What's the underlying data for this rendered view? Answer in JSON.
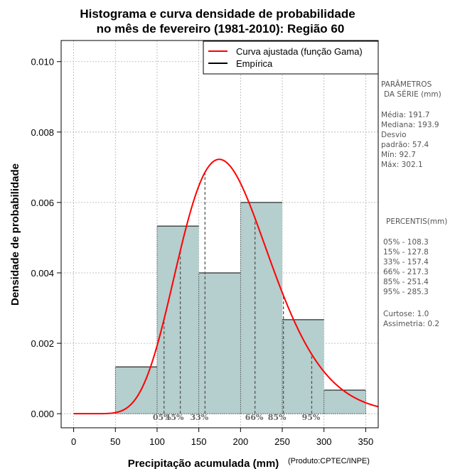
{
  "chart_data": {
    "type": "histogram",
    "title_line1": "Histograma e curva densidade de probabilidade",
    "title_line2": "no mês de fevereiro (1981-2010): Região 60",
    "xlabel": "Precipitação acumulada (mm)",
    "ylabel": "Densidade de probabilidade",
    "credit": "(Produto:CPTEC/INPE)",
    "xlim": [
      -15,
      365
    ],
    "ylim": [
      -0.0004,
      0.0106
    ],
    "x_ticks": [
      0,
      50,
      100,
      150,
      200,
      250,
      300,
      350
    ],
    "x_tick_labels": [
      "0",
      "50",
      "100",
      "150",
      "200",
      "250",
      "300",
      "350"
    ],
    "y_ticks": [
      0,
      0.002,
      0.004,
      0.006,
      0.008,
      0.01
    ],
    "y_tick_labels": [
      "0.000",
      "0.002",
      "0.004",
      "0.006",
      "0.008",
      "0.010"
    ],
    "grid": true,
    "bins": [
      {
        "start": 50,
        "end": 100,
        "density": 0.00133
      },
      {
        "start": 100,
        "end": 150,
        "density": 0.00533
      },
      {
        "start": 150,
        "end": 200,
        "density": 0.004
      },
      {
        "start": 200,
        "end": 250,
        "density": 0.006
      },
      {
        "start": 250,
        "end": 300,
        "density": 0.00267
      },
      {
        "start": 300,
        "end": 350,
        "density": 0.00067
      }
    ],
    "bar_color": "#b5cece",
    "curve_color": "#ff0000",
    "gamma_fit": {
      "mean": 191.7,
      "sd": 57.4
    },
    "legend": {
      "position": "top-right",
      "entries": [
        {
          "label": "Curva ajustada (função Gama)",
          "color": "#ff0000"
        },
        {
          "label": "Empírica",
          "color": "#000000"
        }
      ]
    },
    "percentiles": [
      {
        "label": "05%",
        "value": 108.3
      },
      {
        "label": "15%",
        "value": 127.8
      },
      {
        "label": "33%",
        "value": 157.4
      },
      {
        "label": "66%",
        "value": 217.3
      },
      {
        "label": "85%",
        "value": 251.4
      },
      {
        "label": "95%",
        "value": 285.3
      }
    ]
  },
  "side_panel": {
    "params_title_1": "PARÂMETROS",
    "params_title_2": "DA SÉRIE (mm)",
    "media": "Média:  191.7",
    "mediana": "Mediana:  193.9",
    "desvio_1": "Desvio",
    "desvio_2": "padrão:  57.4",
    "min": "Mín:  92.7",
    "max": "Máx:  302.1",
    "percentis_title": "PERCENTIS(mm)",
    "percentis": [
      "05% -  108.3",
      "15% -  127.8",
      "33% -  157.4",
      "66% -  217.3",
      "85% -  251.4",
      "95% -  285.3"
    ],
    "curtose": "Curtose:  1.0",
    "assimetria": "Assimetria:  0.2"
  }
}
